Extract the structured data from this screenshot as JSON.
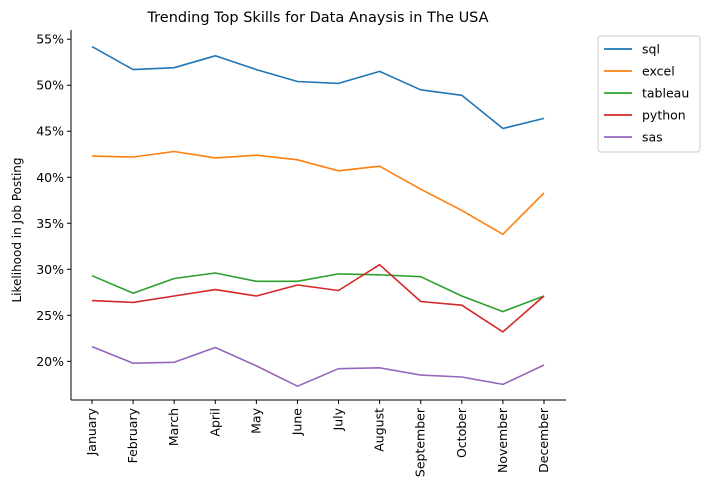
{
  "chart_data": {
    "type": "line",
    "title": "Trending Top Skills for Data Anaysis in The USA",
    "xlabel": "",
    "ylabel": "Likelihood in Job Posting",
    "categories": [
      "January",
      "February",
      "March",
      "April",
      "May",
      "June",
      "July",
      "August",
      "September",
      "October",
      "November",
      "December"
    ],
    "ylim": [
      15.8,
      56.0
    ],
    "yticks": [
      20,
      25,
      30,
      35,
      40,
      45,
      50,
      55
    ],
    "ytick_labels": [
      "20%",
      "25%",
      "30%",
      "35%",
      "40%",
      "45%",
      "50%",
      "55%"
    ],
    "grid": false,
    "legend_position": "outside-top-right",
    "series": [
      {
        "name": "sql",
        "color": "#1f77b4",
        "values": [
          54.2,
          51.7,
          51.9,
          53.2,
          51.7,
          50.4,
          50.2,
          51.5,
          49.5,
          48.9,
          45.3,
          46.4
        ]
      },
      {
        "name": "excel",
        "color": "#ff7f0e",
        "values": [
          42.3,
          42.2,
          42.8,
          42.1,
          42.4,
          41.9,
          40.7,
          41.2,
          38.7,
          36.4,
          33.8,
          38.3
        ]
      },
      {
        "name": "tableau",
        "color": "#2ca02c",
        "values": [
          29.3,
          27.4,
          29.0,
          29.6,
          28.7,
          28.7,
          29.5,
          29.4,
          29.2,
          27.1,
          25.4,
          27.1
        ]
      },
      {
        "name": "python",
        "color": "#d62728",
        "values": [
          26.6,
          26.4,
          27.1,
          27.8,
          27.1,
          28.3,
          27.7,
          30.5,
          26.5,
          26.1,
          23.2,
          27.1
        ]
      },
      {
        "name": "sas",
        "color": "#9467bd",
        "values": [
          21.6,
          19.8,
          19.9,
          21.5,
          19.5,
          17.3,
          19.2,
          19.3,
          18.5,
          18.3,
          17.5,
          19.6
        ]
      }
    ]
  }
}
